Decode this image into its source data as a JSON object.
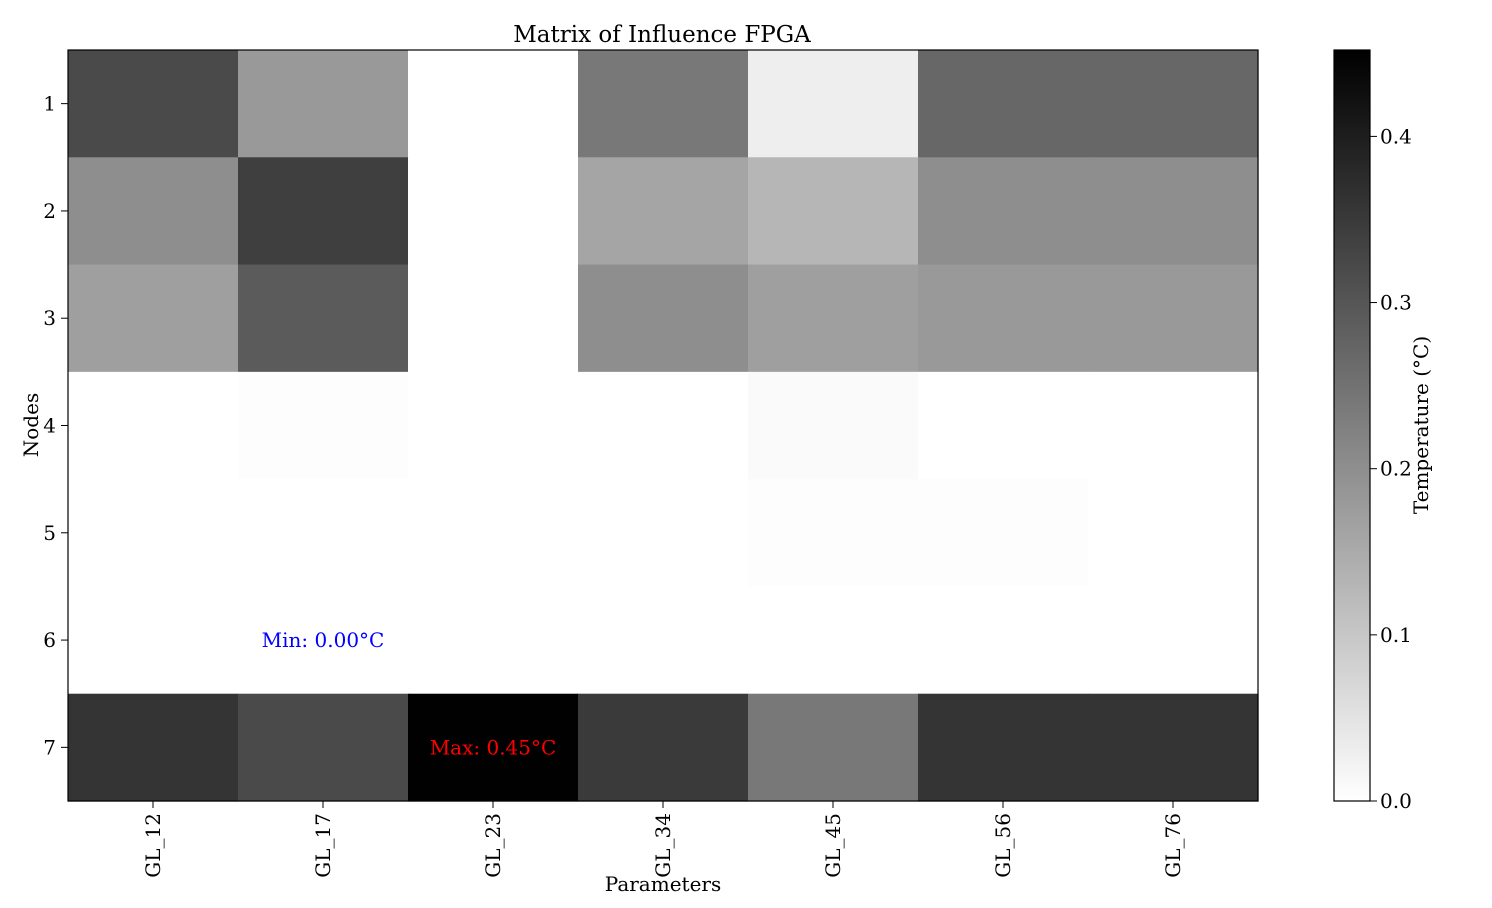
{
  "chart_data": {
    "type": "heatmap",
    "title": "Matrix of Influence FPGA",
    "xlabel": "Parameters",
    "ylabel": "Nodes",
    "x_categories": [
      "GL_12",
      "GL_17",
      "GL_23",
      "GL_34",
      "GL_45",
      "GL_56",
      "GL_76"
    ],
    "y_categories": [
      "1",
      "2",
      "3",
      "4",
      "5",
      "6",
      "7"
    ],
    "values": [
      [
        0.32,
        0.18,
        0.0,
        0.24,
        0.03,
        0.27,
        0.27
      ],
      [
        0.2,
        0.34,
        0.0,
        0.16,
        0.13,
        0.2,
        0.2
      ],
      [
        0.17,
        0.29,
        0.0,
        0.2,
        0.17,
        0.18,
        0.18
      ],
      [
        0.0,
        0.003,
        0.0,
        0.0,
        0.008,
        0.0,
        0.0
      ],
      [
        0.0,
        0.0,
        0.0,
        0.0,
        0.004,
        0.004,
        0.0
      ],
      [
        0.0,
        0.0,
        0.0,
        0.0,
        0.0,
        0.0,
        0.0
      ],
      [
        0.36,
        0.32,
        0.45,
        0.35,
        0.24,
        0.36,
        0.36
      ]
    ],
    "colormap": "gray_r",
    "vmin": 0.0,
    "vmax": 0.452,
    "colorbar": {
      "label": "Temperature (°C)",
      "ticks": [
        0.0,
        0.1,
        0.2,
        0.3,
        0.4
      ],
      "tick_labels": [
        "0.0",
        "0.1",
        "0.2",
        "0.3",
        "0.4"
      ]
    },
    "annotations": [
      {
        "name": "min",
        "text": "Min: 0.00°C",
        "row": 5,
        "col": 1,
        "color": "#0000ff"
      },
      {
        "name": "max",
        "text": "Max: 0.45°C",
        "row": 6,
        "col": 2,
        "color": "#ff0000"
      }
    ],
    "grid": false
  }
}
